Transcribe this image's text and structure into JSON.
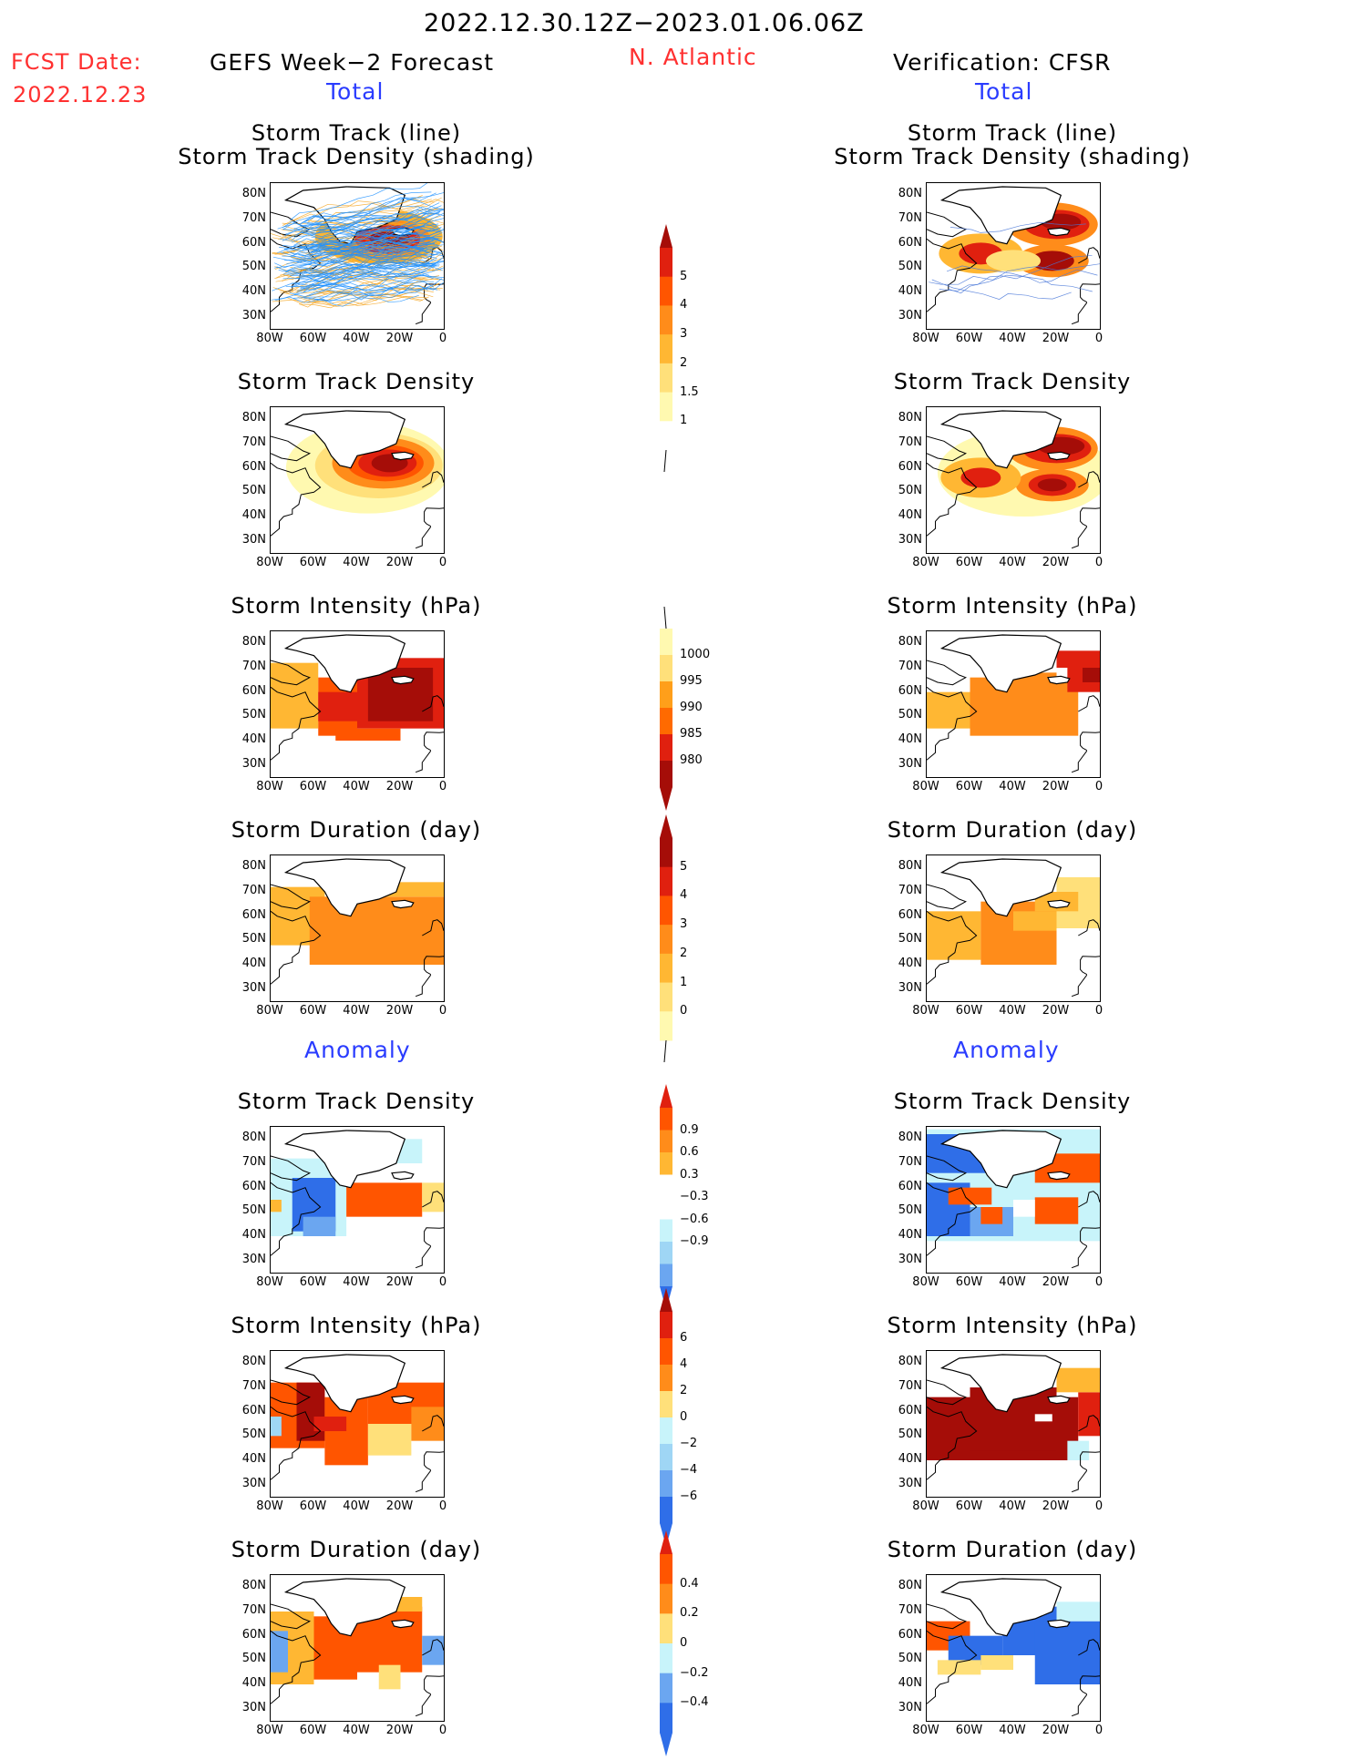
{
  "header": {
    "period": "2022.12.30.12Z−2023.01.06.06Z",
    "fcst_label": "FCST Date:",
    "fcst_date": "2022.12.23",
    "left_title": "GEFS Week−2 Forecast",
    "region": "N. Atlantic",
    "right_title": "Verification: CFSR"
  },
  "sections": {
    "total": "Total",
    "anomaly": "Anomaly"
  },
  "axes": {
    "lat_ticks": [
      "80N",
      "70N",
      "60N",
      "50N",
      "40N",
      "30N"
    ],
    "lon_ticks": [
      "80W",
      "60W",
      "40W",
      "20W",
      "0"
    ]
  },
  "panels": {
    "track_line_1": "Storm Track (line)",
    "track_line_2": "Storm Track Density (shading)",
    "density": "Storm Track Density",
    "intensity": "Storm Intensity (hPa)",
    "duration": "Storm Duration (day)"
  },
  "colorbars": {
    "density_total": [
      "5",
      "4",
      "3",
      "2",
      "1.5",
      "1"
    ],
    "intensity_total": [
      "1000",
      "995",
      "990",
      "985",
      "980"
    ],
    "duration_total": [
      "5",
      "4",
      "3",
      "2",
      "1",
      "0"
    ],
    "density_anom": [
      "0.9",
      "0.6",
      "0.3",
      "−0.3",
      "−0.6",
      "−0.9"
    ],
    "intensity_anom": [
      "6",
      "4",
      "2",
      "0",
      "−2",
      "−4",
      "−6"
    ],
    "duration_anom": [
      "0.4",
      "0.2",
      "0",
      "−0.2",
      "−0.4"
    ]
  },
  "palettes": {
    "warm": [
      "#fff9b0",
      "#ffe07a",
      "#ffb733",
      "#ff8c1a",
      "#ff5500",
      "#e0200f",
      "#a50d08"
    ],
    "cold": [
      "#c8f4fa",
      "#9fd6f5",
      "#6ba6f0",
      "#2f6ee8"
    ],
    "track_blue": "#1e90ff",
    "track_orange": "#f5a623"
  },
  "chart_data": [
    {
      "type": "heatmap",
      "title": "Storm Track (line) / Storm Track Density (shading)",
      "source": "GEFS Week−2 Forecast",
      "section": "Total",
      "xlim": [
        -80,
        0
      ],
      "ylim": [
        25,
        85
      ],
      "levels": [
        1,
        1.5,
        2,
        3,
        4,
        5
      ],
      "peak_region": {
        "lon": -25,
        "lat": 62,
        "value": 5
      }
    },
    {
      "type": "heatmap",
      "title": "Storm Track (line) / Storm Track Density (shading)",
      "source": "Verification: CFSR",
      "section": "Total",
      "xlim": [
        -80,
        0
      ],
      "ylim": [
        25,
        85
      ],
      "levels": [
        1,
        1.5,
        2,
        3,
        4,
        5
      ],
      "peak_regions": [
        {
          "lon": -20,
          "lat": 68,
          "value": 5
        },
        {
          "lon": -22,
          "lat": 53,
          "value": 5
        },
        {
          "lon": -55,
          "lat": 55,
          "value": 4
        }
      ]
    },
    {
      "type": "heatmap",
      "title": "Storm Track Density",
      "source": "GEFS Week−2 Forecast",
      "section": "Total",
      "xlim": [
        -80,
        0
      ],
      "ylim": [
        25,
        85
      ],
      "levels": [
        1,
        1.5,
        2,
        3,
        4,
        5
      ],
      "peak_region": {
        "lon": -25,
        "lat": 62,
        "value": 5
      }
    },
    {
      "type": "heatmap",
      "title": "Storm Track Density",
      "source": "Verification: CFSR",
      "section": "Total",
      "xlim": [
        -80,
        0
      ],
      "ylim": [
        25,
        85
      ],
      "levels": [
        1,
        1.5,
        2,
        3,
        4,
        5
      ],
      "peak_regions": [
        {
          "lon": -20,
          "lat": 68,
          "value": 5
        },
        {
          "lon": -22,
          "lat": 53,
          "value": 5
        }
      ]
    },
    {
      "type": "heatmap",
      "title": "Storm Intensity (hPa)",
      "source": "GEFS Week−2 Forecast",
      "section": "Total",
      "xlim": [
        -80,
        0
      ],
      "ylim": [
        25,
        85
      ],
      "levels": [
        1000,
        995,
        990,
        985,
        980
      ],
      "min_region": {
        "lon": -25,
        "lat": 60,
        "value": 980
      }
    },
    {
      "type": "heatmap",
      "title": "Storm Intensity (hPa)",
      "source": "Verification: CFSR",
      "section": "Total",
      "xlim": [
        -80,
        0
      ],
      "ylim": [
        25,
        85
      ],
      "levels": [
        1000,
        995,
        990,
        985,
        980
      ],
      "min_region": {
        "lon": -10,
        "lat": 70,
        "value": 980
      }
    },
    {
      "type": "heatmap",
      "title": "Storm Duration (day)",
      "source": "GEFS Week−2 Forecast",
      "section": "Total",
      "xlim": [
        -80,
        0
      ],
      "ylim": [
        25,
        85
      ],
      "levels": [
        0,
        1,
        2,
        3,
        4,
        5
      ],
      "dominant_value": 3.5
    },
    {
      "type": "heatmap",
      "title": "Storm Duration (day)",
      "source": "Verification: CFSR",
      "section": "Total",
      "xlim": [
        -80,
        0
      ],
      "ylim": [
        25,
        85
      ],
      "levels": [
        0,
        1,
        2,
        3,
        4,
        5
      ],
      "dominant_value": 2.5
    },
    {
      "type": "heatmap",
      "title": "Storm Track Density",
      "source": "GEFS Week−2 Forecast",
      "section": "Anomaly",
      "xlim": [
        -80,
        0
      ],
      "ylim": [
        25,
        85
      ],
      "levels": [
        -0.9,
        -0.6,
        -0.3,
        0.3,
        0.6,
        0.9
      ],
      "positive_region": {
        "lon": -25,
        "lat": 55,
        "value": 0.9
      },
      "negative_region": {
        "lon": -60,
        "lat": 50,
        "value": -0.9
      }
    },
    {
      "type": "heatmap",
      "title": "Storm Track Density",
      "source": "Verification: CFSR",
      "section": "Anomaly",
      "xlim": [
        -80,
        0
      ],
      "ylim": [
        25,
        85
      ],
      "levels": [
        -0.9,
        -0.6,
        -0.3,
        0.3,
        0.6,
        0.9
      ],
      "positive_region": {
        "lon": -15,
        "lat": 65,
        "value": 0.9
      },
      "negative_region": {
        "lon": -60,
        "lat": 70,
        "value": -0.9
      }
    },
    {
      "type": "heatmap",
      "title": "Storm Intensity (hPa)",
      "source": "GEFS Week−2 Forecast",
      "section": "Anomaly",
      "xlim": [
        -80,
        0
      ],
      "ylim": [
        25,
        85
      ],
      "levels": [
        -6,
        -4,
        -2,
        0,
        2,
        4,
        6
      ],
      "dominant_value": 4
    },
    {
      "type": "heatmap",
      "title": "Storm Intensity (hPa)",
      "source": "Verification: CFSR",
      "section": "Anomaly",
      "xlim": [
        -80,
        0
      ],
      "ylim": [
        25,
        85
      ],
      "levels": [
        -6,
        -4,
        -2,
        0,
        2,
        4,
        6
      ],
      "dominant_value": 6
    },
    {
      "type": "heatmap",
      "title": "Storm Duration (day)",
      "source": "GEFS Week−2 Forecast",
      "section": "Anomaly",
      "xlim": [
        -80,
        0
      ],
      "ylim": [
        25,
        85
      ],
      "levels": [
        -0.4,
        -0.2,
        0,
        0.2,
        0.4
      ],
      "dominant_value": 0.4
    },
    {
      "type": "heatmap",
      "title": "Storm Duration (day)",
      "source": "Verification: CFSR",
      "section": "Anomaly",
      "xlim": [
        -80,
        0
      ],
      "ylim": [
        25,
        85
      ],
      "levels": [
        -0.4,
        -0.2,
        0,
        0.2,
        0.4
      ],
      "dominant_value": -0.4
    }
  ]
}
